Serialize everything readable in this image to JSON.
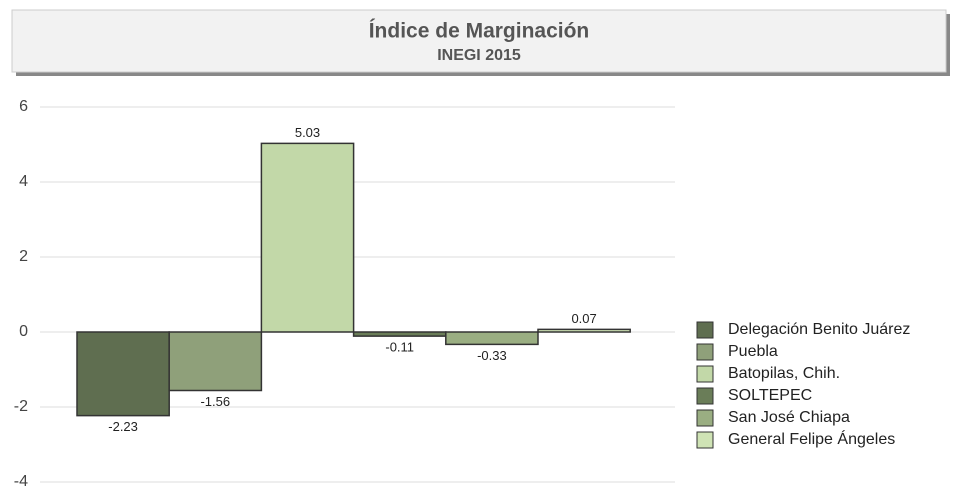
{
  "chart_data": {
    "type": "bar",
    "title": "Índice de Marginación",
    "subtitle": "INEGI 2015",
    "categories": [
      "Delegación Benito Juárez",
      "Puebla",
      "Batopilas, Chih.",
      "SOLTEPEC",
      "San José Chiapa",
      "General Felipe Ángeles"
    ],
    "values": [
      -2.23,
      -1.56,
      5.03,
      -0.11,
      -0.33,
      0.07
    ],
    "colors": [
      "#5f6e50",
      "#8fa07a",
      "#c2d8a8",
      "#6a7d58",
      "#9aae82",
      "#cfe3b5"
    ],
    "ylim": [
      -4,
      6
    ],
    "yticks": [
      -4,
      -2,
      0,
      2,
      4,
      6
    ],
    "grid": true,
    "legend": "right"
  }
}
